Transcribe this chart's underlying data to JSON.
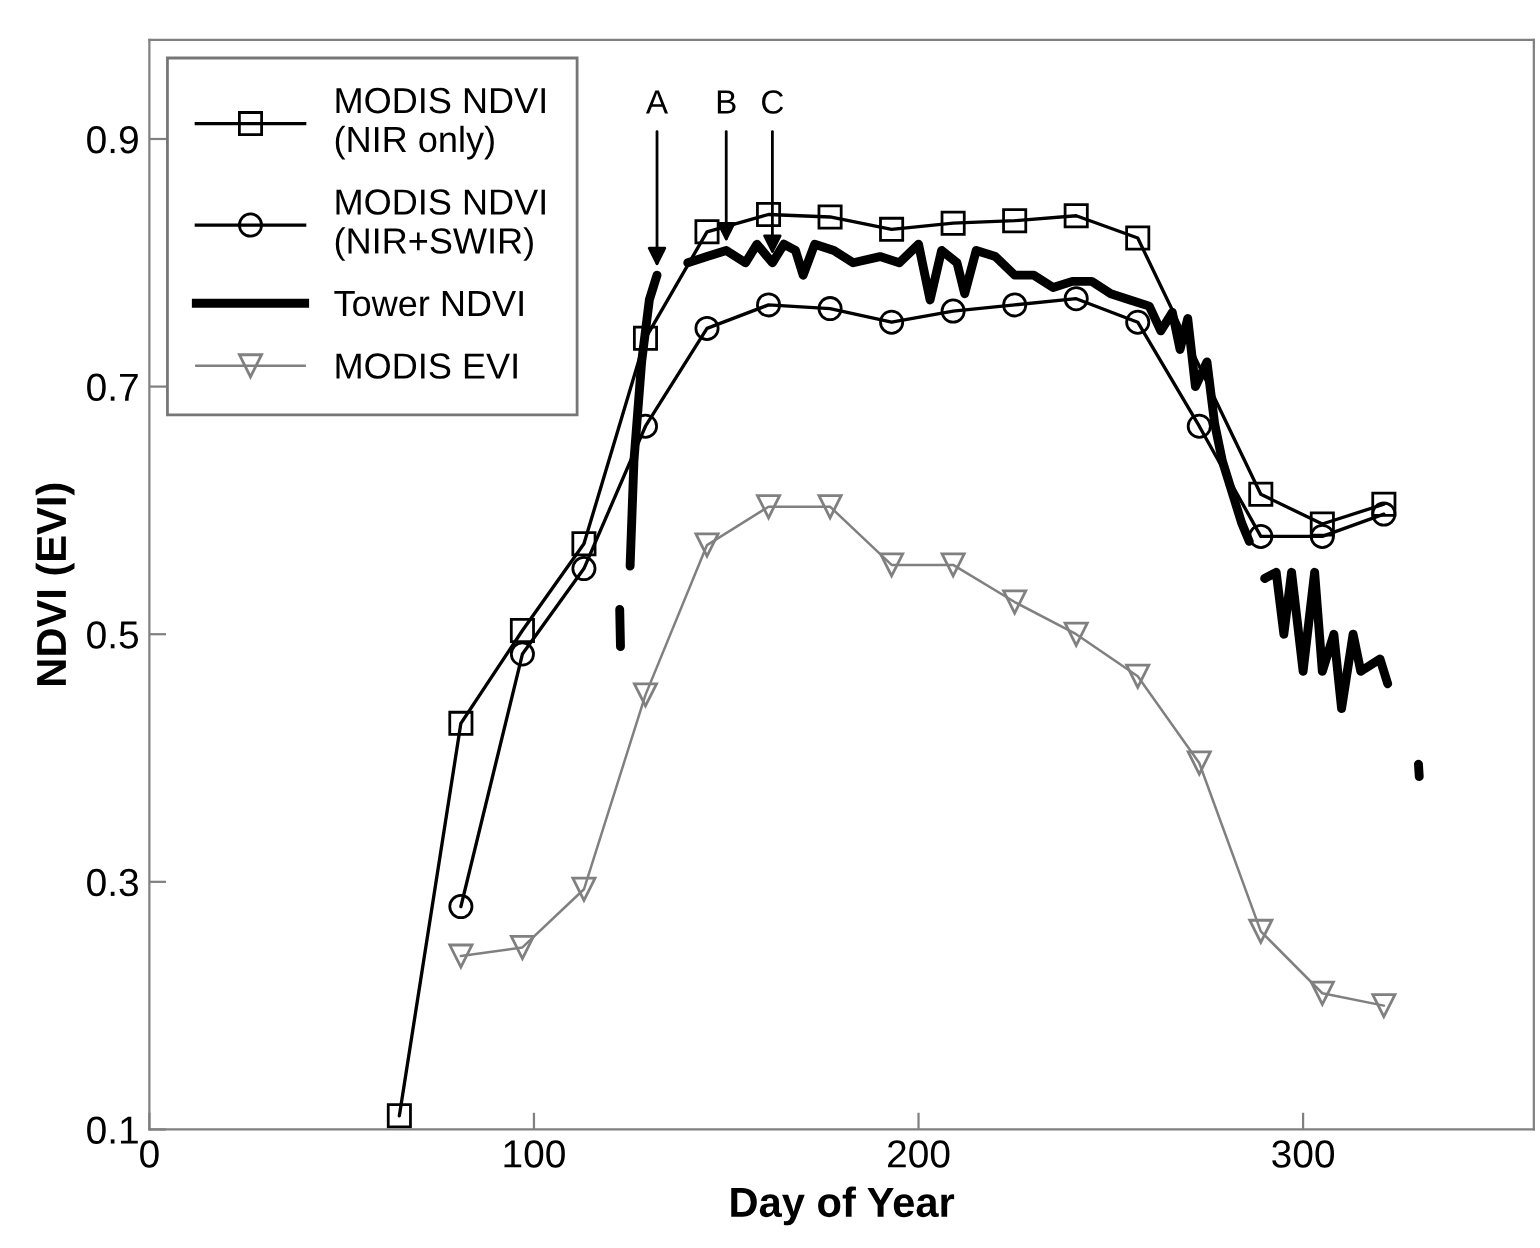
{
  "chart_data": {
    "type": "line",
    "xlabel": "Day of Year",
    "ylabel": "NDVI (EVI)",
    "xlim": [
      0,
      360
    ],
    "xticks": [
      0,
      100,
      200,
      300
    ],
    "ylim": [
      0.1,
      0.98
    ],
    "yticks": [
      0.1,
      0.3,
      0.5,
      0.7,
      0.9
    ],
    "grid": false,
    "legend": "top left",
    "series": [
      {
        "name": "MODIS NDVI\n(NIR only)",
        "color": "#000000",
        "marker": "square",
        "x": [
          65,
          81,
          97,
          113,
          129,
          145,
          161,
          177,
          193,
          209,
          225,
          241,
          257,
          289,
          305,
          321
        ],
        "values": [
          0.111,
          0.428,
          0.503,
          0.573,
          0.739,
          0.825,
          0.839,
          0.837,
          0.827,
          0.832,
          0.834,
          0.838,
          0.82,
          0.613,
          0.589,
          0.605
        ]
      },
      {
        "name": "MODIS NDVI\n(NIR+SWIR)",
        "color": "#000000",
        "marker": "circle",
        "x": [
          81,
          97,
          113,
          129,
          145,
          161,
          177,
          193,
          209,
          225,
          241,
          257,
          273,
          289,
          305,
          321
        ],
        "values": [
          0.28,
          0.484,
          0.553,
          0.668,
          0.747,
          0.766,
          0.763,
          0.752,
          0.761,
          0.766,
          0.771,
          0.752,
          0.668,
          0.579,
          0.579,
          0.597
        ]
      },
      {
        "name": "Tower NDVI",
        "color": "#000000",
        "marker": "none",
        "x": [
          122.3,
          122.5,
          123,
          125,
          126,
          128,
          130,
          132,
          133,
          140,
          145,
          150,
          155,
          158,
          162,
          165,
          168,
          170,
          173,
          178,
          183,
          190,
          195,
          200,
          203,
          206,
          210,
          212,
          215,
          220,
          225,
          230,
          235,
          240,
          245,
          250,
          255,
          260,
          263,
          266,
          268,
          270,
          272,
          275,
          277,
          279,
          282,
          284,
          286,
          287,
          290,
          293,
          295,
          297,
          300,
          303,
          305,
          308,
          310,
          313,
          315,
          320,
          322,
          325,
          330,
          330.2
        ],
        "values": [
          0.52,
          0.49,
          null,
          0.555,
          0.64,
          0.72,
          0.77,
          0.79,
          null,
          0.8,
          0.805,
          0.81,
          0.8,
          0.815,
          0.8,
          0.815,
          0.81,
          0.79,
          0.815,
          0.81,
          0.8,
          0.805,
          0.8,
          0.815,
          0.77,
          0.81,
          0.8,
          0.775,
          0.81,
          0.805,
          0.79,
          0.79,
          0.78,
          0.785,
          0.785,
          0.775,
          0.77,
          0.765,
          0.745,
          0.76,
          0.73,
          0.755,
          0.7,
          0.72,
          0.67,
          0.64,
          0.61,
          0.59,
          0.575,
          null,
          0.545,
          0.55,
          0.5,
          0.55,
          0.47,
          0.55,
          0.47,
          0.5,
          0.44,
          0.5,
          0.47,
          0.48,
          0.46,
          null,
          0.395,
          0.385
        ]
      },
      {
        "name": "MODIS EVI",
        "color": "#808080",
        "marker": "triangle",
        "x": [
          81,
          97,
          113,
          129,
          145,
          161,
          177,
          193,
          209,
          225,
          241,
          257,
          273,
          289,
          305,
          321
        ],
        "values": [
          0.24,
          0.247,
          0.294,
          0.451,
          0.572,
          0.603,
          0.603,
          0.556,
          0.556,
          0.526,
          0.5,
          0.466,
          0.396,
          0.26,
          0.21,
          0.2
        ]
      }
    ],
    "annotations": [
      {
        "text": "A",
        "x": 132,
        "y": 0.79
      },
      {
        "text": "B",
        "x": 150,
        "y": 0.81
      },
      {
        "text": "C",
        "x": 162,
        "y": 0.8
      }
    ]
  }
}
